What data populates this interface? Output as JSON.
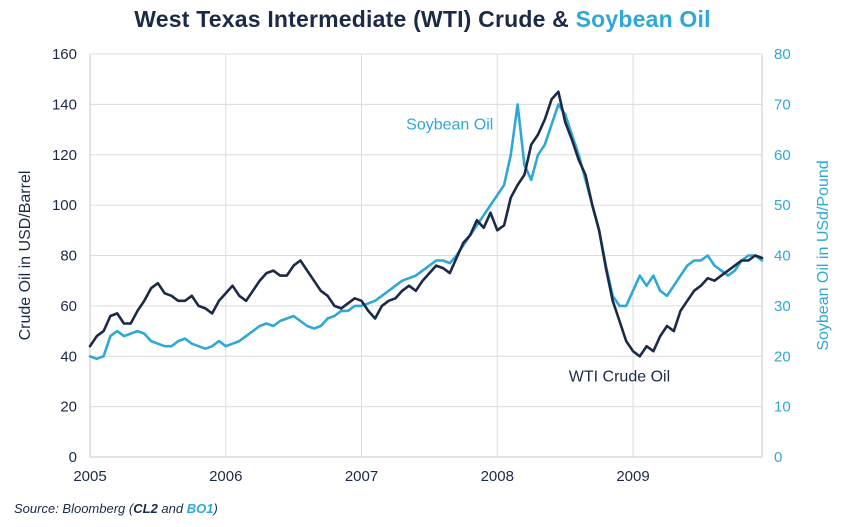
{
  "title": {
    "main": "West Texas Intermediate (WTI) Crude & ",
    "highlight": "Soybean Oil"
  },
  "source": {
    "prefix": "Source: Bloomberg (",
    "code1": "CL2",
    "and": " and ",
    "code2": "BO1",
    "suffix": ")"
  },
  "colors": {
    "wti": "#1b2a47",
    "soy": "#2fa8d6",
    "grid": "#dcdcdc",
    "axis_text": "#1b2a47"
  },
  "chart_data": {
    "type": "line",
    "title": "West Texas Intermediate (WTI) Crude & Soybean Oil",
    "xlabel": "",
    "ylabel": "Crude Oil in USD/Barrel",
    "y2label": "Soybean Oil in USd/Pound",
    "xlim": [
      2005.0,
      2009.95
    ],
    "ylim": [
      0,
      160
    ],
    "y2lim": [
      0,
      80
    ],
    "x_ticks": [
      2005,
      2006,
      2007,
      2008,
      2009
    ],
    "x_tick_labels": [
      "2005",
      "2006",
      "2007",
      "2008",
      "2009"
    ],
    "y_ticks": [
      0,
      20,
      40,
      60,
      80,
      100,
      120,
      140,
      160
    ],
    "y2_ticks": [
      0,
      10,
      20,
      30,
      40,
      50,
      60,
      70,
      80
    ],
    "grid": true,
    "annotations": [
      {
        "text": "Soybean Oil",
        "series": "Soybean Oil",
        "x": 2007.65,
        "y": 130
      },
      {
        "text": "WTI Crude Oil",
        "series": "WTI Crude Oil",
        "x": 2008.9,
        "y": 30
      }
    ],
    "series": [
      {
        "name": "WTI Crude Oil",
        "axis": "left",
        "x": [
          2005.0,
          2005.05,
          2005.1,
          2005.15,
          2005.2,
          2005.25,
          2005.3,
          2005.35,
          2005.4,
          2005.45,
          2005.5,
          2005.55,
          2005.6,
          2005.65,
          2005.7,
          2005.75,
          2005.8,
          2005.85,
          2005.9,
          2005.95,
          2006.0,
          2006.05,
          2006.1,
          2006.15,
          2006.2,
          2006.25,
          2006.3,
          2006.35,
          2006.4,
          2006.45,
          2006.5,
          2006.55,
          2006.6,
          2006.65,
          2006.7,
          2006.75,
          2006.8,
          2006.85,
          2006.9,
          2006.95,
          2007.0,
          2007.05,
          2007.1,
          2007.15,
          2007.2,
          2007.25,
          2007.3,
          2007.35,
          2007.4,
          2007.45,
          2007.5,
          2007.55,
          2007.6,
          2007.65,
          2007.7,
          2007.75,
          2007.8,
          2007.85,
          2007.9,
          2007.95,
          2008.0,
          2008.05,
          2008.1,
          2008.15,
          2008.2,
          2008.25,
          2008.3,
          2008.35,
          2008.4,
          2008.45,
          2008.5,
          2008.55,
          2008.6,
          2008.65,
          2008.7,
          2008.75,
          2008.8,
          2008.85,
          2008.9,
          2008.95,
          2009.0,
          2009.05,
          2009.1,
          2009.15,
          2009.2,
          2009.25,
          2009.3,
          2009.35,
          2009.4,
          2009.45,
          2009.5,
          2009.55,
          2009.6,
          2009.65,
          2009.7,
          2009.75,
          2009.8,
          2009.85,
          2009.9,
          2009.95
        ],
        "values": [
          44,
          48,
          50,
          56,
          57,
          53,
          53,
          58,
          62,
          67,
          69,
          65,
          64,
          62,
          62,
          64,
          60,
          59,
          57,
          62,
          65,
          68,
          64,
          62,
          66,
          70,
          73,
          74,
          72,
          72,
          76,
          78,
          74,
          70,
          66,
          64,
          60,
          59,
          61,
          63,
          62,
          58,
          55,
          60,
          62,
          63,
          66,
          68,
          66,
          70,
          73,
          76,
          75,
          73,
          79,
          85,
          88,
          94,
          91,
          97,
          90,
          92,
          103,
          108,
          112,
          124,
          128,
          134,
          142,
          145,
          133,
          126,
          118,
          112,
          100,
          90,
          75,
          62,
          54,
          46,
          42,
          40,
          44,
          42,
          48,
          52,
          50,
          58,
          62,
          66,
          68,
          71,
          70,
          72,
          74,
          76,
          78,
          78,
          80,
          79
        ]
      },
      {
        "name": "Soybean Oil",
        "axis": "right",
        "x": [
          2005.0,
          2005.05,
          2005.1,
          2005.15,
          2005.2,
          2005.25,
          2005.3,
          2005.35,
          2005.4,
          2005.45,
          2005.5,
          2005.55,
          2005.6,
          2005.65,
          2005.7,
          2005.75,
          2005.8,
          2005.85,
          2005.9,
          2005.95,
          2006.0,
          2006.05,
          2006.1,
          2006.15,
          2006.2,
          2006.25,
          2006.3,
          2006.35,
          2006.4,
          2006.45,
          2006.5,
          2006.55,
          2006.6,
          2006.65,
          2006.7,
          2006.75,
          2006.8,
          2006.85,
          2006.9,
          2006.95,
          2007.0,
          2007.05,
          2007.1,
          2007.15,
          2007.2,
          2007.25,
          2007.3,
          2007.35,
          2007.4,
          2007.45,
          2007.5,
          2007.55,
          2007.6,
          2007.65,
          2007.7,
          2007.75,
          2007.8,
          2007.85,
          2007.9,
          2007.95,
          2008.0,
          2008.05,
          2008.1,
          2008.15,
          2008.2,
          2008.25,
          2008.3,
          2008.35,
          2008.4,
          2008.45,
          2008.5,
          2008.55,
          2008.6,
          2008.65,
          2008.7,
          2008.75,
          2008.8,
          2008.85,
          2008.9,
          2008.95,
          2009.0,
          2009.05,
          2009.1,
          2009.15,
          2009.2,
          2009.25,
          2009.3,
          2009.35,
          2009.4,
          2009.45,
          2009.5,
          2009.55,
          2009.6,
          2009.65,
          2009.7,
          2009.75,
          2009.8,
          2009.85,
          2009.9,
          2009.95
        ],
        "values": [
          20,
          19.5,
          20,
          24,
          25,
          24,
          24.5,
          25,
          24.5,
          23,
          22.5,
          22,
          22,
          23,
          23.5,
          22.5,
          22,
          21.5,
          22,
          23,
          22,
          22.5,
          23,
          24,
          25,
          26,
          26.5,
          26,
          27,
          27.5,
          28,
          27,
          26,
          25.5,
          26,
          27.5,
          28,
          29,
          29,
          30,
          30,
          30.5,
          31,
          32,
          33,
          34,
          35,
          35.5,
          36,
          37,
          38,
          39,
          39,
          38.5,
          40,
          42,
          44,
          46,
          48,
          50,
          52,
          54,
          60,
          70,
          58,
          55,
          60,
          62,
          66,
          70,
          68,
          64,
          60,
          55,
          50,
          45,
          38,
          32,
          30,
          30,
          33,
          36,
          34,
          36,
          33,
          32,
          34,
          36,
          38,
          39,
          39,
          40,
          38,
          37,
          36,
          37,
          39,
          40,
          40,
          39
        ]
      }
    ]
  }
}
